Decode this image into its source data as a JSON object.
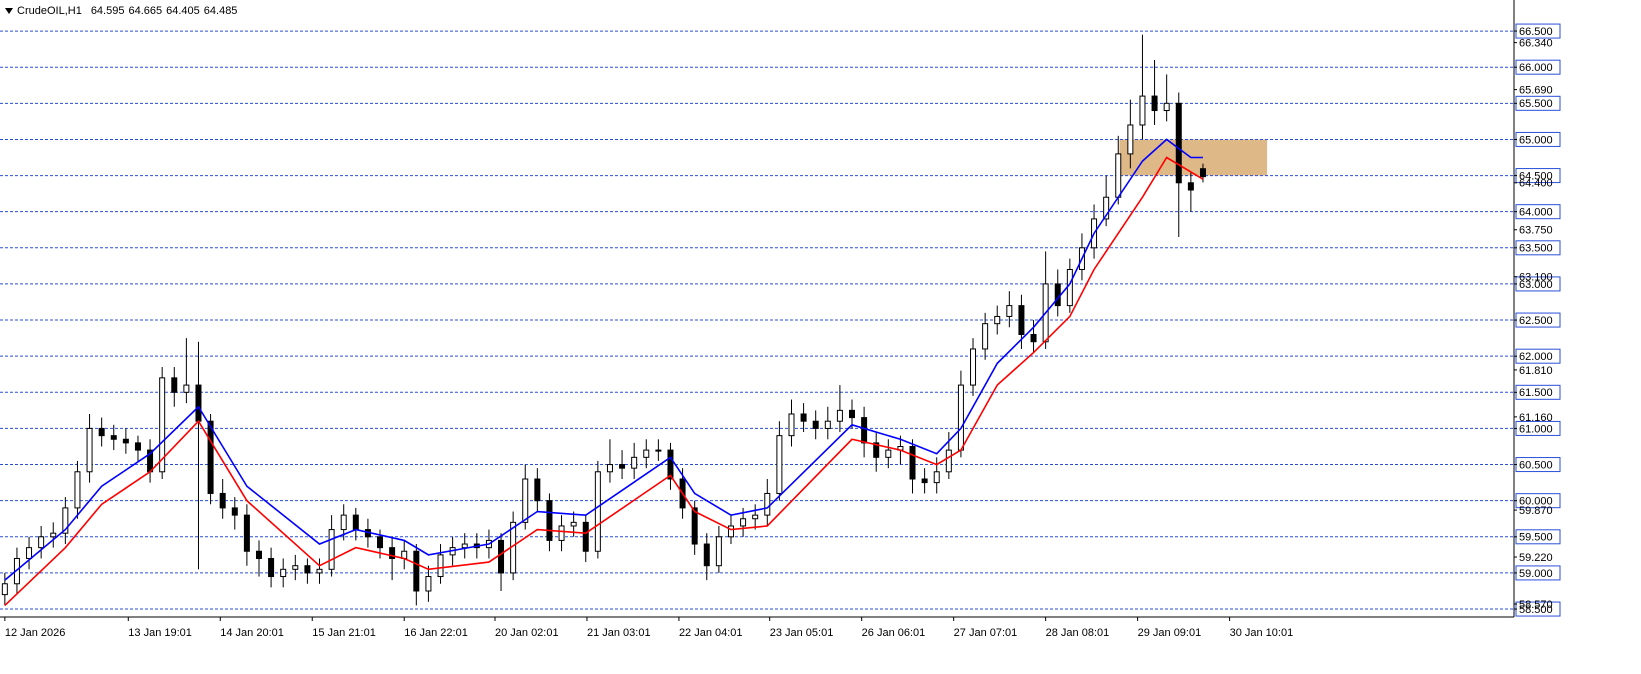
{
  "chart_data": {
    "type": "candlestick",
    "symbol": "CrudeOIL,H1",
    "open": [
      58.7,
      58.85,
      59.2,
      59.35,
      59.5,
      59.55,
      59.9,
      60.4,
      61.0,
      60.9,
      60.85,
      60.8,
      60.7,
      60.4,
      61.7,
      61.5,
      61.6,
      61.1,
      60.1,
      59.9,
      59.8,
      59.3,
      59.2,
      58.95,
      59.05,
      59.1,
      59.0,
      59.05,
      59.6,
      59.8,
      59.6,
      59.5,
      59.35,
      59.2,
      59.3,
      58.75,
      58.95,
      59.25,
      59.35,
      59.4,
      59.35,
      59.45,
      59.0,
      59.7,
      60.3,
      60.0,
      59.45,
      59.65,
      59.7,
      59.3,
      60.4,
      60.5,
      60.45,
      60.6,
      60.7,
      60.7,
      60.3,
      59.9,
      59.4,
      59.1,
      59.5,
      59.65,
      59.75,
      59.8,
      60.1,
      60.9,
      61.2,
      61.1,
      61.0,
      61.1,
      61.25,
      61.15,
      60.8,
      60.6,
      60.7,
      60.75,
      60.3,
      60.25,
      60.4,
      60.7,
      61.6,
      62.1,
      62.45,
      62.55,
      62.7,
      62.3,
      62.2,
      63.0,
      62.7,
      63.2,
      63.5,
      63.9,
      64.2,
      64.8,
      65.2,
      65.6,
      65.4,
      65.5,
      64.4,
      64.595
    ],
    "high": [
      59.0,
      59.35,
      59.5,
      59.65,
      59.7,
      60.05,
      60.55,
      61.2,
      61.15,
      61.05,
      61.0,
      60.9,
      60.85,
      61.85,
      61.85,
      62.25,
      62.2,
      61.2,
      60.3,
      60.05,
      59.95,
      59.45,
      59.35,
      59.2,
      59.25,
      59.2,
      59.2,
      59.8,
      59.95,
      59.9,
      59.75,
      59.6,
      59.5,
      59.45,
      59.4,
      59.1,
      59.4,
      59.5,
      59.55,
      59.55,
      59.6,
      59.55,
      59.85,
      60.5,
      60.45,
      60.1,
      59.8,
      59.85,
      59.8,
      60.55,
      60.85,
      60.7,
      60.8,
      60.85,
      60.85,
      60.8,
      60.45,
      60.0,
      59.55,
      59.65,
      59.8,
      59.9,
      59.95,
      60.3,
      61.1,
      61.4,
      61.35,
      61.25,
      61.3,
      61.6,
      61.4,
      61.3,
      60.95,
      60.85,
      60.9,
      60.85,
      60.45,
      60.6,
      60.95,
      61.8,
      62.25,
      62.6,
      62.7,
      62.9,
      62.85,
      62.5,
      63.45,
      63.2,
      63.35,
      63.7,
      64.1,
      64.5,
      65.05,
      65.55,
      66.45,
      66.1,
      65.9,
      65.65,
      64.55,
      64.665
    ],
    "low": [
      58.55,
      58.7,
      59.05,
      59.2,
      59.35,
      59.4,
      59.75,
      60.25,
      60.75,
      60.7,
      60.65,
      60.55,
      60.25,
      60.3,
      61.3,
      61.35,
      59.05,
      59.95,
      59.75,
      59.6,
      59.1,
      58.95,
      58.8,
      58.8,
      58.9,
      58.85,
      58.85,
      58.95,
      59.45,
      59.45,
      59.35,
      59.2,
      58.9,
      59.05,
      58.55,
      58.6,
      58.85,
      59.1,
      59.2,
      59.2,
      59.2,
      58.75,
      58.9,
      59.6,
      59.85,
      59.3,
      59.3,
      59.5,
      59.15,
      59.2,
      60.25,
      60.3,
      60.3,
      60.45,
      60.55,
      60.15,
      59.75,
      59.25,
      58.9,
      59.0,
      59.4,
      59.5,
      59.6,
      59.65,
      60.0,
      60.75,
      60.95,
      60.85,
      60.85,
      60.95,
      61.0,
      60.6,
      60.4,
      60.45,
      60.5,
      60.1,
      60.1,
      60.1,
      60.3,
      60.6,
      61.45,
      61.95,
      62.3,
      62.4,
      62.1,
      62.05,
      62.1,
      62.55,
      62.6,
      63.05,
      63.35,
      63.8,
      64.1,
      64.6,
      65.0,
      65.2,
      65.25,
      63.65,
      64.0,
      64.405
    ],
    "close": [
      58.85,
      59.2,
      59.35,
      59.5,
      59.55,
      59.9,
      60.4,
      61.0,
      60.9,
      60.85,
      60.8,
      60.7,
      60.4,
      61.7,
      61.5,
      61.6,
      61.1,
      60.1,
      59.9,
      59.8,
      59.3,
      59.2,
      58.95,
      59.05,
      59.1,
      59.0,
      59.05,
      59.6,
      59.8,
      59.6,
      59.5,
      59.35,
      59.2,
      59.3,
      58.75,
      58.95,
      59.25,
      59.35,
      59.4,
      59.35,
      59.45,
      59.0,
      59.7,
      60.3,
      60.0,
      59.45,
      59.65,
      59.7,
      59.3,
      60.4,
      60.5,
      60.45,
      60.6,
      60.7,
      60.7,
      60.3,
      59.9,
      59.4,
      59.1,
      59.5,
      59.65,
      59.75,
      59.8,
      60.1,
      60.9,
      61.2,
      61.1,
      61.0,
      61.1,
      61.25,
      61.15,
      60.8,
      60.6,
      60.7,
      60.75,
      60.3,
      60.25,
      60.4,
      60.7,
      61.6,
      62.1,
      62.45,
      62.55,
      62.7,
      62.3,
      62.2,
      63.0,
      62.7,
      63.2,
      63.5,
      63.9,
      64.2,
      64.8,
      65.2,
      65.6,
      65.4,
      65.5,
      64.4,
      64.3,
      64.485
    ],
    "up_color": "#ffffff",
    "down_color": "#000000",
    "lines": [
      {
        "color": "#0000ff",
        "x": [
          0,
          5,
          8,
          12,
          16,
          20,
          26,
          29,
          33,
          35,
          40,
          44,
          48,
          55,
          57,
          60,
          63,
          70,
          74,
          77,
          79,
          82,
          85,
          88,
          90,
          94,
          96,
          98,
          99
        ],
        "values": [
          58.9,
          59.6,
          60.2,
          60.65,
          61.3,
          60.2,
          59.4,
          59.6,
          59.45,
          59.25,
          59.4,
          59.85,
          59.8,
          60.6,
          60.1,
          59.8,
          59.9,
          61.05,
          60.85,
          60.65,
          61.0,
          61.9,
          62.4,
          63.0,
          63.7,
          64.7,
          65.0,
          64.75,
          64.75
        ]
      },
      {
        "color": "#ff0000",
        "x": [
          0,
          5,
          8,
          12,
          16,
          20,
          26,
          29,
          33,
          35,
          40,
          44,
          48,
          55,
          57,
          60,
          63,
          70,
          74,
          77,
          79,
          82,
          85,
          88,
          90,
          94,
          96,
          98,
          99
        ],
        "values": [
          58.55,
          59.35,
          59.95,
          60.4,
          61.1,
          60.0,
          59.1,
          59.35,
          59.2,
          59.05,
          59.15,
          59.6,
          59.55,
          60.35,
          59.85,
          59.6,
          59.65,
          60.85,
          60.7,
          60.5,
          60.7,
          61.6,
          62.05,
          62.55,
          63.2,
          64.2,
          64.75,
          64.55,
          64.45
        ]
      }
    ],
    "zone": {
      "x": [
        92.1,
        104.3
      ],
      "y": [
        64.5,
        65.0
      ],
      "color": "#deb887"
    },
    "xlim": [
      -0.4,
      124.7
    ],
    "ylim": [
      58.39,
      66.93
    ],
    "levels": [
      {
        "value": 58.5,
        "label": "58.500"
      },
      {
        "value": 59.0,
        "label": "59.000"
      },
      {
        "value": 59.5,
        "label": "59.500"
      },
      {
        "value": 60.0,
        "label": "60.000"
      },
      {
        "value": 60.5,
        "label": "60.500"
      },
      {
        "value": 61.0,
        "label": "61.000"
      },
      {
        "value": 61.5,
        "label": "61.500"
      },
      {
        "value": 62.0,
        "label": "62.000"
      },
      {
        "value": 62.5,
        "label": "62.500"
      },
      {
        "value": 63.0,
        "label": "63.000"
      },
      {
        "value": 63.5,
        "label": "63.500"
      },
      {
        "value": 64.0,
        "label": "64.000"
      },
      {
        "value": 64.5,
        "label": "64.500"
      },
      {
        "value": 65.0,
        "label": "65.000"
      },
      {
        "value": 65.5,
        "label": "65.500"
      },
      {
        "value": 66.0,
        "label": "66.000"
      },
      {
        "value": 66.5,
        "label": "66.500"
      }
    ],
    "level_color": "#2a4fd8",
    "yticks": [
      {
        "value": 58.57,
        "label": "58.570"
      },
      {
        "value": 59.22,
        "label": "59.220"
      },
      {
        "value": 59.87,
        "label": "59.870"
      },
      {
        "value": 61.16,
        "label": "61.160"
      },
      {
        "value": 61.81,
        "label": "61.810"
      },
      {
        "value": 63.1,
        "label": "63.100"
      },
      {
        "value": 63.75,
        "label": "63.750"
      },
      {
        "value": 64.4,
        "label": "64.400"
      },
      {
        "value": 65.69,
        "label": "65.690"
      },
      {
        "value": 66.34,
        "label": "66.340"
      }
    ],
    "xticks": [
      {
        "value": 0,
        "label": "12 Jan 2026"
      },
      {
        "value": 10.2,
        "label": "13 Jan 19:01"
      },
      {
        "value": 17.8,
        "label": "14 Jan 20:01"
      },
      {
        "value": 25.4,
        "label": "15 Jan 21:01"
      },
      {
        "value": 33.0,
        "label": "16 Jan 22:01"
      },
      {
        "value": 40.5,
        "label": "20 Jan 02:01"
      },
      {
        "value": 48.1,
        "label": "21 Jan 03:01"
      },
      {
        "value": 55.7,
        "label": "22 Jan 04:01"
      },
      {
        "value": 63.2,
        "label": "23 Jan 05:01"
      },
      {
        "value": 70.8,
        "label": "26 Jan 06:01"
      },
      {
        "value": 78.4,
        "label": "27 Jan 07:01"
      },
      {
        "value": 86.0,
        "label": "28 Jan 08:01"
      },
      {
        "value": 93.6,
        "label": "29 Jan 09:01"
      },
      {
        "value": 101.2,
        "label": "30 Jan 10:01"
      }
    ]
  }
}
